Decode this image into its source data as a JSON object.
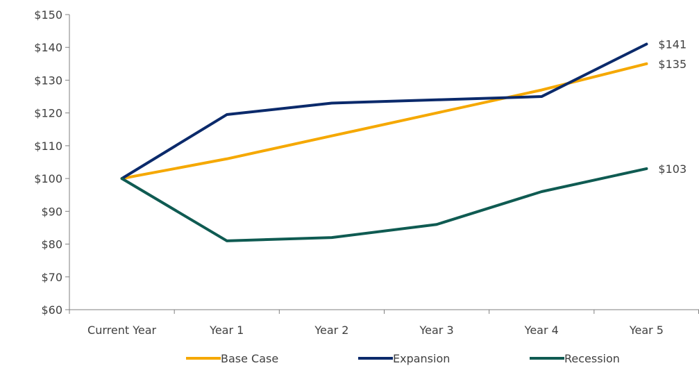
{
  "chart_data": {
    "type": "line",
    "title": "",
    "xlabel": "",
    "ylabel": "",
    "categories": [
      "Current Year",
      "Year 1",
      "Year 2",
      "Year 3",
      "Year 4",
      "Year 5"
    ],
    "ylim": [
      60,
      150
    ],
    "yticks": [
      60,
      70,
      80,
      90,
      100,
      110,
      120,
      130,
      140,
      150
    ],
    "ytick_labels": [
      "$60",
      "$70",
      "$80",
      "$90",
      "$100",
      "$110",
      "$120",
      "$130",
      "$140",
      "$150"
    ],
    "grid": false,
    "legend_position": "bottom",
    "series": [
      {
        "name": "Base Case",
        "color": "#F5A800",
        "values": [
          100,
          106,
          113,
          120,
          127,
          135
        ],
        "end_label": "$135"
      },
      {
        "name": "Expansion",
        "color": "#0B2A6B",
        "values": [
          100,
          119.5,
          123,
          124,
          125,
          141
        ],
        "end_label": "$141"
      },
      {
        "name": "Recession",
        "color": "#0F5B52",
        "values": [
          100,
          81,
          82,
          86,
          96,
          103
        ],
        "end_label": "$103"
      }
    ]
  }
}
